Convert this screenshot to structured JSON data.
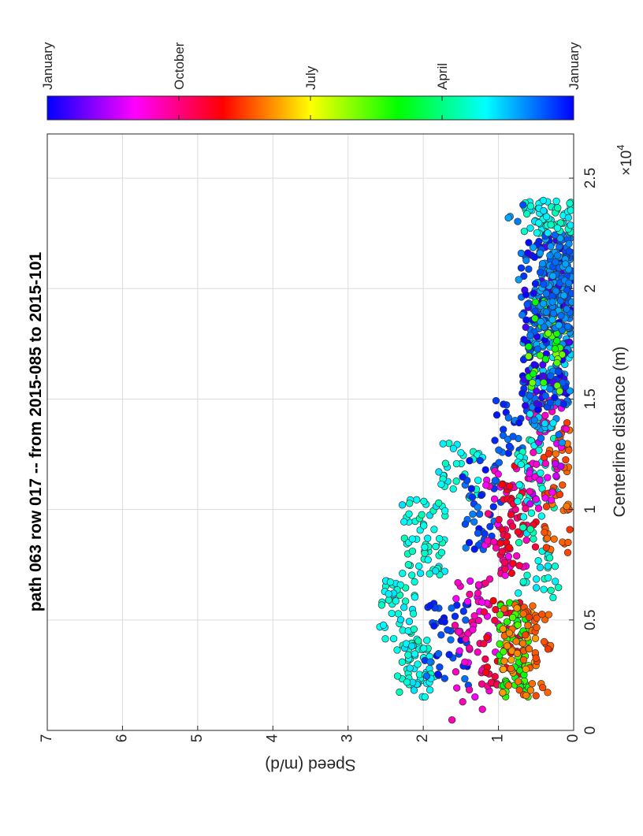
{
  "chart_data": {
    "type": "scatter",
    "orientation": "rotated-90-clockwise",
    "title": "path 063 row 017  -- from 2015-085 to 2015-101",
    "xlabel": "Centerline distance (m)",
    "ylabel": "Speed (m/d)",
    "x_exponent_label": "×10",
    "x_exponent_power": "4",
    "xlim": [
      0,
      27000
    ],
    "ylim": [
      0,
      7
    ],
    "x_ticks": [
      {
        "value": 0,
        "label": "0"
      },
      {
        "value": 5000,
        "label": "0.5"
      },
      {
        "value": 10000,
        "label": "1"
      },
      {
        "value": 15000,
        "label": "1.5"
      },
      {
        "value": 20000,
        "label": "2"
      },
      {
        "value": 25000,
        "label": "2.5"
      }
    ],
    "y_ticks": [
      {
        "value": 0,
        "label": "0"
      },
      {
        "value": 1,
        "label": "1"
      },
      {
        "value": 2,
        "label": "2"
      },
      {
        "value": 3,
        "label": "3"
      },
      {
        "value": 4,
        "label": "4"
      },
      {
        "value": 5,
        "label": "5"
      },
      {
        "value": 6,
        "label": "6"
      },
      {
        "value": 7,
        "label": "7"
      }
    ],
    "grid": true,
    "colorbar": {
      "colormap": "hsv",
      "range": [
        0,
        1
      ],
      "ticks": [
        {
          "value": 0.0,
          "label": "January"
        },
        {
          "value": 0.25,
          "label": "April"
        },
        {
          "value": 0.5,
          "label": "July"
        },
        {
          "value": 0.75,
          "label": "October"
        },
        {
          "value": 1.0,
          "label": "January"
        }
      ]
    },
    "groups": [
      {
        "x": [
          300,
          1300
        ],
        "y": [
          1.0,
          1.7
        ],
        "season": [
          0.72,
          0.95
        ],
        "n": 3
      },
      {
        "x": [
          1500,
          4200
        ],
        "y": [
          1.85,
          2.35
        ],
        "season": [
          0.45,
          0.52
        ],
        "n": 60
      },
      {
        "x": [
          3800,
          6800
        ],
        "y": [
          2.1,
          2.6
        ],
        "season": [
          0.45,
          0.52
        ],
        "n": 45
      },
      {
        "x": [
          7000,
          10500
        ],
        "y": [
          1.7,
          2.3
        ],
        "season": [
          0.45,
          0.52
        ],
        "n": 60
      },
      {
        "x": [
          10500,
          13000
        ],
        "y": [
          1.2,
          1.8
        ],
        "season": [
          0.45,
          0.52
        ],
        "n": 30
      },
      {
        "x": [
          2000,
          6000
        ],
        "y": [
          1.4,
          2.0
        ],
        "season": [
          0.58,
          0.66
        ],
        "n": 40
      },
      {
        "x": [
          8000,
          12500
        ],
        "y": [
          0.95,
          1.5
        ],
        "season": [
          0.58,
          0.66
        ],
        "n": 45
      },
      {
        "x": [
          12500,
          15000
        ],
        "y": [
          0.6,
          1.05
        ],
        "season": [
          0.58,
          0.66
        ],
        "n": 25
      },
      {
        "x": [
          1500,
          7000
        ],
        "y": [
          1.0,
          1.6
        ],
        "season": [
          0.82,
          0.92
        ],
        "n": 55
      },
      {
        "x": [
          7000,
          12000
        ],
        "y": [
          0.6,
          1.2
        ],
        "season": [
          0.82,
          0.92
        ],
        "n": 45
      },
      {
        "x": [
          2000,
          6000
        ],
        "y": [
          0.7,
          1.2
        ],
        "season": [
          0.94,
          1.0
        ],
        "n": 40
      },
      {
        "x": [
          7000,
          12000
        ],
        "y": [
          0.5,
          1.0
        ],
        "season": [
          0.94,
          1.0
        ],
        "n": 40
      },
      {
        "x": [
          1500,
          5800
        ],
        "y": [
          0.6,
          1.0
        ],
        "season": [
          0.28,
          0.36
        ],
        "n": 70
      },
      {
        "x": [
          1500,
          5800
        ],
        "y": [
          0.5,
          0.95
        ],
        "season": [
          0.05,
          0.12
        ],
        "n": 45
      },
      {
        "x": [
          1500,
          5800
        ],
        "y": [
          0.3,
          0.7
        ],
        "season": [
          0.03,
          0.08
        ],
        "n": 30
      },
      {
        "x": [
          6000,
          14000
        ],
        "y": [
          0.2,
          0.75
        ],
        "season": [
          0.44,
          0.52
        ],
        "n": 80
      },
      {
        "x": [
          8000,
          14000
        ],
        "y": [
          0.05,
          0.4
        ],
        "season": [
          0.03,
          0.08
        ],
        "n": 50
      },
      {
        "x": [
          10000,
          16000
        ],
        "y": [
          0.1,
          0.6
        ],
        "season": [
          0.78,
          0.88
        ],
        "n": 60
      },
      {
        "x": [
          13000,
          20000
        ],
        "y": [
          0.02,
          0.6
        ],
        "season": [
          0.5,
          0.6
        ],
        "n": 120
      },
      {
        "x": [
          14500,
          22500
        ],
        "y": [
          0.02,
          0.7
        ],
        "season": [
          0.55,
          0.72
        ],
        "n": 200
      },
      {
        "x": [
          15000,
          19500
        ],
        "y": [
          0.1,
          0.6
        ],
        "season": [
          0.25,
          0.35
        ],
        "n": 40
      },
      {
        "x": [
          18000,
          22500
        ],
        "y": [
          0.02,
          0.45
        ],
        "season": [
          0.55,
          0.62
        ],
        "n": 120
      },
      {
        "x": [
          22500,
          24000
        ],
        "y": [
          0.02,
          0.7
        ],
        "season": [
          0.45,
          0.52
        ],
        "n": 70
      },
      {
        "x": [
          20000,
          23800
        ],
        "y": [
          0.5,
          1.0
        ],
        "season": [
          0.55,
          0.62
        ],
        "n": 8
      }
    ]
  }
}
